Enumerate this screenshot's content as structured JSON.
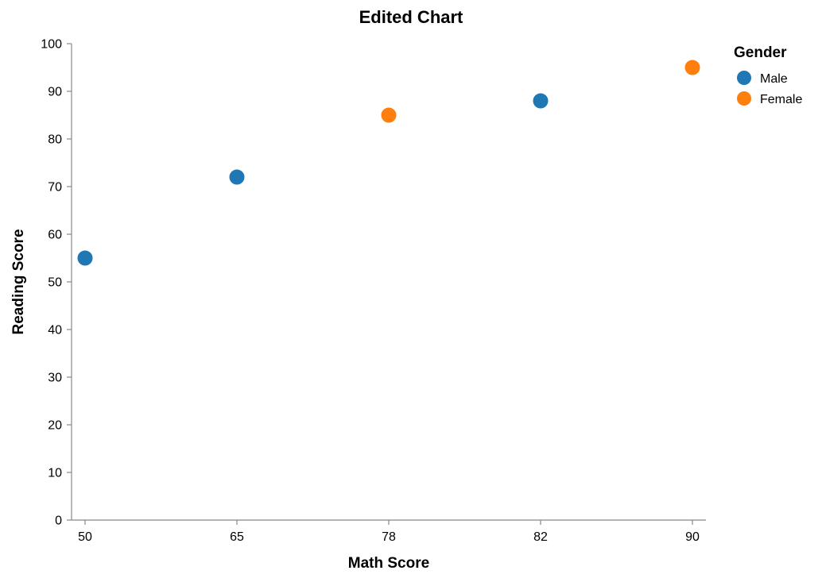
{
  "chart_data": {
    "type": "scatter",
    "title": "Edited Chart",
    "xlabel": "Math Score",
    "ylabel": "Reading Score",
    "x_scale": "point",
    "x_categories": [
      50,
      65,
      78,
      82,
      90
    ],
    "ylim": [
      0,
      100
    ],
    "y_ticks": [
      0,
      10,
      20,
      30,
      40,
      50,
      60,
      70,
      80,
      90,
      100
    ],
    "grid": false,
    "legend": {
      "title": "Gender",
      "placement": "top-right",
      "entries": [
        {
          "label": "Male",
          "color": "#1f77b4"
        },
        {
          "label": "Female",
          "color": "#ff7f0e"
        }
      ]
    },
    "points": [
      {
        "x": 50,
        "y": 55,
        "gender": "Male"
      },
      {
        "x": 65,
        "y": 72,
        "gender": "Male"
      },
      {
        "x": 78,
        "y": 85,
        "gender": "Female"
      },
      {
        "x": 82,
        "y": 88,
        "gender": "Male"
      },
      {
        "x": 90,
        "y": 95,
        "gender": "Female"
      }
    ]
  }
}
